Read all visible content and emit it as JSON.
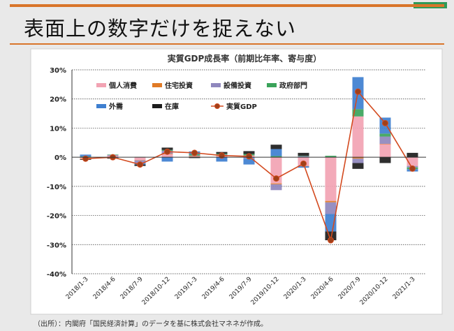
{
  "slide": {
    "title": "表面上の数字だけを捉えない",
    "source": "（出所）：内閣府「国民経済計算」のデータを基に株式会社マネネが作成。"
  },
  "colors": {
    "accent_line": "#d9752a",
    "header_green": "#2f9a57"
  },
  "chart_data": {
    "type": "bar",
    "title": "実質GDP成長率（前期比年率、寄与度）",
    "categories": [
      "2018/1-3",
      "2018/4-6",
      "2018/7-9",
      "2018/10-12",
      "2019/1-3",
      "2019/4-6",
      "2019/7-9",
      "2019/10-12",
      "2020/1-3",
      "2020/4-6",
      "2020/7-9",
      "2020/10-12",
      "2021/1-3"
    ],
    "ylim": [
      -40,
      30
    ],
    "yticks": [
      "30%",
      "20%",
      "10%",
      "0%",
      "-10%",
      "-20%",
      "-30%",
      "-40%"
    ],
    "ytick_values": [
      30,
      20,
      10,
      0,
      -10,
      -20,
      -30,
      -40
    ],
    "grid": true,
    "legend_position": "top-left",
    "stacked": true,
    "series": [
      {
        "name": "個人消費",
        "color": "#f2a3b3",
        "values": [
          -0.5,
          0.5,
          -1.0,
          1.0,
          0.3,
          0.5,
          0.6,
          -9.0,
          -3.0,
          -15.0,
          14.0,
          4.5,
          -3.0
        ]
      },
      {
        "name": "住宅投資",
        "color": "#e07a26",
        "values": [
          -0.2,
          0.0,
          -0.1,
          0.2,
          0.1,
          0.1,
          0.0,
          -0.3,
          -0.1,
          -0.5,
          -0.5,
          0.1,
          0.0
        ]
      },
      {
        "name": "設備投資",
        "color": "#8f87bd",
        "values": [
          0.2,
          0.3,
          -1.0,
          1.0,
          0.2,
          0.3,
          -0.5,
          -2.0,
          0.4,
          -4.0,
          -1.5,
          2.5,
          -0.5
        ]
      },
      {
        "name": "政府部門",
        "color": "#3aa35a",
        "values": [
          0.1,
          0.1,
          0.1,
          0.3,
          0.4,
          0.3,
          0.5,
          0.4,
          0.1,
          0.5,
          2.5,
          1.0,
          -0.6
        ]
      },
      {
        "name": "外需",
        "color": "#3e7fd0",
        "values": [
          0.6,
          -0.3,
          -0.4,
          -1.5,
          1.0,
          -1.5,
          -2.0,
          2.4,
          -0.5,
          -6.0,
          11.0,
          5.5,
          -0.8
        ]
      },
      {
        "name": "在庫",
        "color": "#1c1c1c",
        "values": [
          -0.2,
          -0.2,
          -0.5,
          0.8,
          -0.3,
          0.6,
          1.0,
          1.5,
          1.0,
          -3.0,
          -2.0,
          -2.0,
          1.5
        ]
      }
    ],
    "line_series": {
      "name": "実質GDP",
      "color": "#d34a1f",
      "marker_color": "#a0401a",
      "values": [
        -0.5,
        0.0,
        -2.5,
        1.9,
        1.5,
        0.6,
        0.3,
        -7.3,
        -2.2,
        -28.5,
        22.5,
        11.7,
        -3.9
      ]
    }
  }
}
